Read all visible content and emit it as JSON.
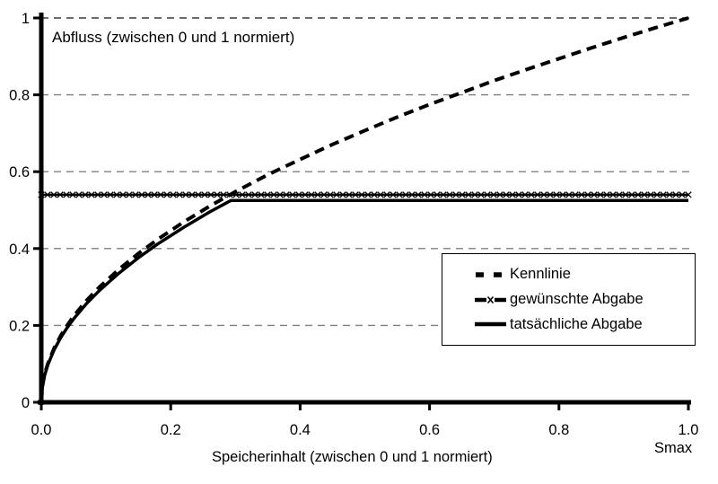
{
  "chart_data": {
    "type": "line",
    "title": "Abfluss (zwischen 0 und 1 normiert)",
    "xlabel": "Speicherinhalt (zwischen 0 und 1 normiert)",
    "x_max_label": "Smax",
    "xlim": [
      0,
      1
    ],
    "ylim": [
      0,
      1
    ],
    "grid": "horizontal-dashed",
    "gridline_color": "#808080",
    "axis_color": "#000000",
    "line_color": "#000000",
    "legend_position": "inside-right",
    "xticks": {
      "values": [
        0,
        0.2,
        0.4,
        0.6,
        0.8,
        1.0
      ],
      "labels": [
        "0.0",
        "0.2",
        "0.4",
        "0.6",
        "0.8",
        "1.0"
      ]
    },
    "yticks": {
      "values": [
        0,
        0.2,
        0.4,
        0.6,
        0.8,
        1.0
      ],
      "labels": [
        "0",
        "0.2",
        "0.4",
        "0.6",
        "0.8",
        "1"
      ]
    },
    "series": [
      {
        "name": "Kennlinie",
        "style": "dashed",
        "color": "#000000",
        "width": 4,
        "x": [
          0,
          0.002,
          0.005,
          0.01,
          0.02,
          0.03,
          0.04,
          0.05,
          0.07,
          0.09,
          0.12,
          0.15,
          0.18,
          0.22,
          0.26,
          0.3,
          0.35,
          0.4,
          0.45,
          0.5,
          0.55,
          0.6,
          0.65,
          0.7,
          0.75,
          0.8,
          0.85,
          0.9,
          0.95,
          1.0
        ],
        "y": [
          0,
          0.045,
          0.071,
          0.1,
          0.141,
          0.173,
          0.2,
          0.224,
          0.265,
          0.3,
          0.346,
          0.387,
          0.424,
          0.469,
          0.51,
          0.548,
          0.592,
          0.632,
          0.671,
          0.707,
          0.742,
          0.775,
          0.806,
          0.837,
          0.866,
          0.894,
          0.922,
          0.949,
          0.975,
          1.0
        ]
      },
      {
        "name": "gewünschte Abgabe",
        "style": "solid-x-markers",
        "color": "#000000",
        "width": 2.5,
        "marker": "x",
        "x": [
          0,
          1.0
        ],
        "y": [
          0.54,
          0.54
        ]
      },
      {
        "name": "tatsächliche Abgabe",
        "style": "solid",
        "color": "#000000",
        "width": 3.5,
        "x": [
          0,
          0.002,
          0.005,
          0.01,
          0.02,
          0.03,
          0.04,
          0.05,
          0.07,
          0.09,
          0.12,
          0.15,
          0.18,
          0.22,
          0.26,
          0.293,
          0.5,
          0.75,
          1.0
        ],
        "y": [
          0,
          0.043,
          0.069,
          0.097,
          0.137,
          0.168,
          0.194,
          0.217,
          0.257,
          0.291,
          0.336,
          0.376,
          0.412,
          0.455,
          0.495,
          0.525,
          0.525,
          0.525,
          0.525
        ]
      }
    ]
  }
}
